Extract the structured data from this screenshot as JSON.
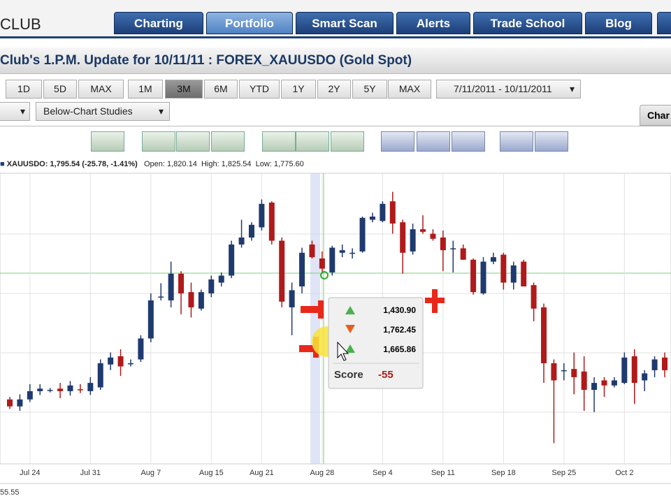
{
  "ui": {
    "logo": "CLUB",
    "tabs": [
      "Charting",
      "Portfolio",
      "Smart Scan",
      "Alerts",
      "Trade School",
      "Blog"
    ],
    "title": "Club's 1.P.M. Update for 10/11/11 : FOREX_XAUUSDO (Gold Spot)",
    "periods": [
      "1D",
      "5D",
      "MAX",
      "1M",
      "3M",
      "6M",
      "YTD",
      "1Y",
      "2Y",
      "5Y",
      "MAX"
    ],
    "date_range": "7/11/2011 - 10/11/2011",
    "studies": "Below-Chart Studies",
    "side_tab": "Char",
    "quote": {
      "symbol": "XAUUSDO: 1,795.54 (-25.78, -1.41%)",
      "open": "Open: 1,820.14",
      "high": "High: 1,825.54",
      "low": "Low: 1,775.60"
    },
    "tooltip": {
      "rows": [
        "1,430.90",
        "1,762.45",
        "1,665.86"
      ],
      "score_label": "Score",
      "score": "-55"
    },
    "footer": "55.55"
  },
  "chart_data": {
    "type": "candlestick",
    "categories": [
      null,
      null,
      "Jul 24",
      null,
      null,
      null,
      null,
      null,
      "Jul 31",
      null,
      null,
      null,
      null,
      null,
      "Aug 7",
      null,
      null,
      null,
      null,
      null,
      "Aug 15",
      null,
      null,
      null,
      null,
      "Aug 21",
      null,
      null,
      null,
      null,
      null,
      "Aug 28",
      null,
      null,
      null,
      null,
      null,
      "Sep 4",
      null,
      null,
      null,
      null,
      null,
      "Sep 11",
      null,
      null,
      null,
      null,
      null,
      "Sep 18",
      null,
      null,
      null,
      null,
      null,
      "Sep 25",
      null,
      null,
      null,
      null,
      null,
      "Oct 2",
      null,
      null,
      null,
      null
    ],
    "open": [
      1596,
      1585,
      1596,
      1609,
      1611,
      1613,
      1609,
      1612,
      1609,
      1615,
      1651,
      1664,
      1653,
      1659,
      1692,
      1758,
      1752,
      1794,
      1765,
      1739,
      1763,
      1780,
      1791,
      1840,
      1851,
      1867,
      1906,
      1846,
      1741,
      1774,
      1840,
      1818,
      1796,
      1827,
      1827,
      1829,
      1879,
      1877,
      1908,
      1875,
      1829,
      1864,
      1857,
      1851,
      1834,
      1834,
      1816,
      1763,
      1813,
      1824,
      1780,
      1813,
      1776,
      1741,
      1653,
      1642,
      1644,
      1640,
      1611,
      1626,
      1618,
      1622,
      1664,
      1626,
      1642,
      1662
    ],
    "high": [
      1600,
      1604,
      1620,
      1620,
      1614,
      1622,
      1625,
      1620,
      1631,
      1659,
      1670,
      1675,
      1659,
      1697,
      1763,
      1779,
      1813,
      1798,
      1780,
      1769,
      1791,
      1796,
      1846,
      1879,
      1875,
      1911,
      1908,
      1851,
      1780,
      1835,
      1846,
      1829,
      1838,
      1840,
      1834,
      1884,
      1890,
      1908,
      1923,
      1879,
      1873,
      1886,
      1864,
      1862,
      1846,
      1840,
      1818,
      1820,
      1827,
      1827,
      1813,
      1816,
      1780,
      1747,
      1659,
      1653,
      1670,
      1664,
      1631,
      1631,
      1631,
      1670,
      1675,
      1642,
      1664,
      1670
    ],
    "low": [
      1581,
      1578,
      1592,
      1603,
      1607,
      1598,
      1602,
      1606,
      1603,
      1611,
      1642,
      1633,
      1648,
      1655,
      1686,
      1752,
      1741,
      1730,
      1725,
      1736,
      1757,
      1774,
      1787,
      1835,
      1846,
      1862,
      1840,
      1741,
      1697,
      1763,
      1818,
      1794,
      1791,
      1820,
      1818,
      1827,
      1875,
      1875,
      1857,
      1794,
      1824,
      1857,
      1846,
      1798,
      1796,
      1816,
      1761,
      1761,
      1809,
      1769,
      1769,
      1774,
      1719,
      1622,
      1527,
      1626,
      1604,
      1578,
      1576,
      1600,
      1615,
      1620,
      1589,
      1609,
      1631,
      1631
    ],
    "close": [
      1585,
      1596,
      1609,
      1613,
      1611,
      1609,
      1618,
      1611,
      1622,
      1653,
      1662,
      1648,
      1653,
      1692,
      1752,
      1758,
      1794,
      1763,
      1741,
      1765,
      1785,
      1791,
      1840,
      1851,
      1871,
      1904,
      1846,
      1750,
      1768,
      1827,
      1820,
      1802,
      1835,
      1831,
      1827,
      1882,
      1884,
      1904,
      1873,
      1827,
      1864,
      1860,
      1849,
      1831,
      1834,
      1816,
      1765,
      1813,
      1820,
      1780,
      1807,
      1774,
      1739,
      1653,
      1626,
      1642,
      1631,
      1611,
      1622,
      1618,
      1626,
      1662,
      1622,
      1637,
      1659,
      1642
    ],
    "up_color": "#1f3a6e",
    "down_color": "#b01a1a",
    "ylim": [
      1500,
      1950
    ],
    "grid": true
  }
}
